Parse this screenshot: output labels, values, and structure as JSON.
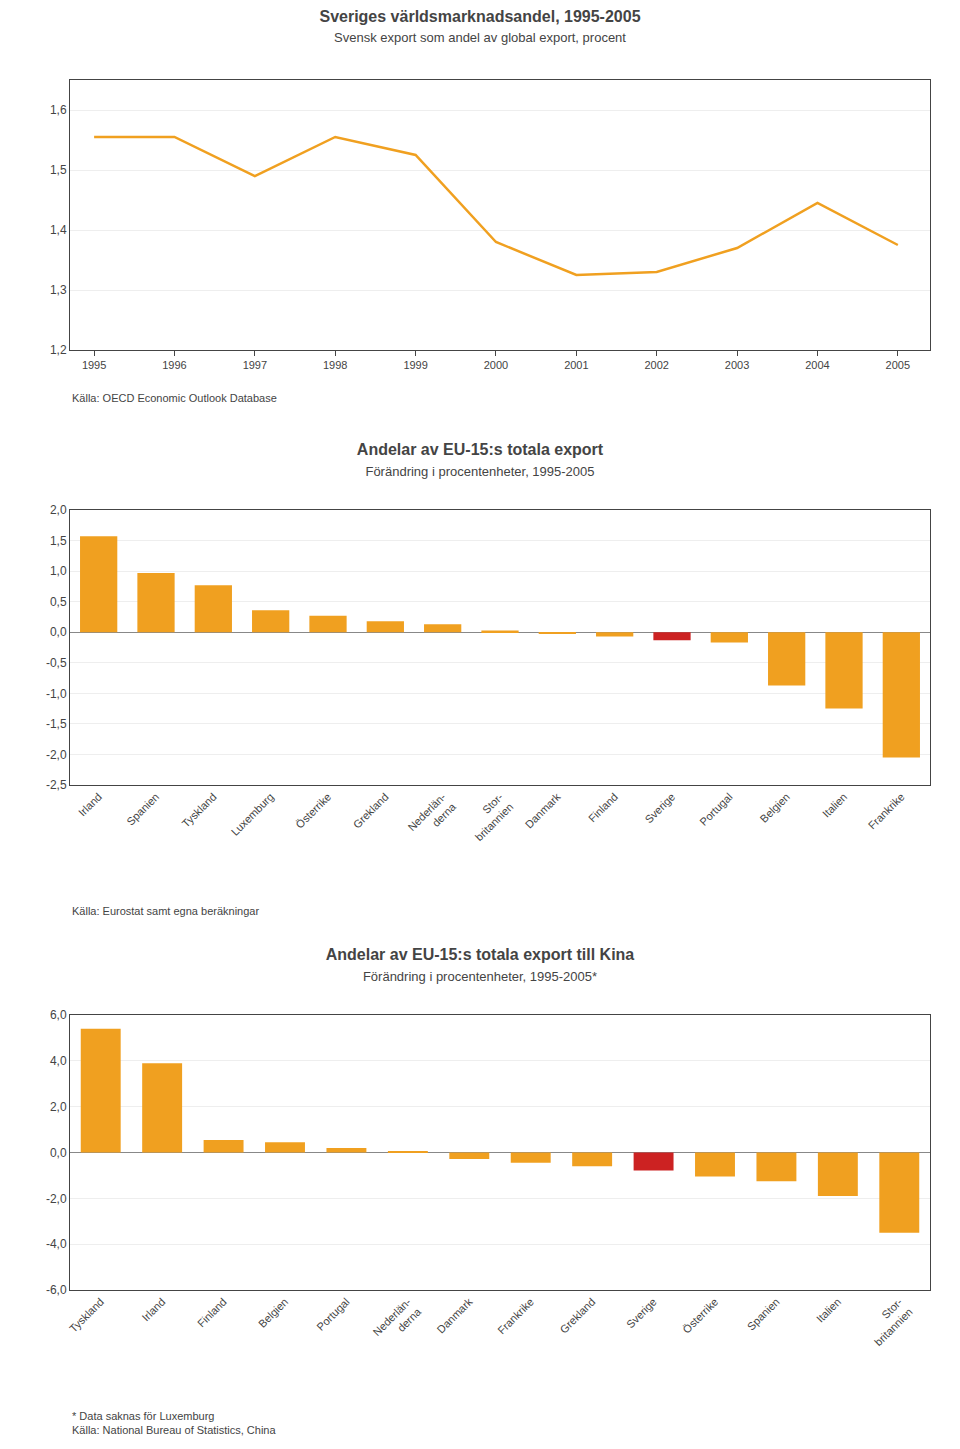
{
  "chart_data": [
    {
      "type": "line",
      "title": "Sveriges världsmarknadsandel, 1995-2005",
      "subtitle": "Svensk export som andel av global export, procent",
      "x": [
        1995,
        1996,
        1997,
        1998,
        1999,
        2000,
        2001,
        2002,
        2003,
        2004,
        2005
      ],
      "values": [
        1.555,
        1.555,
        1.49,
        1.555,
        1.525,
        1.38,
        1.325,
        1.33,
        1.37,
        1.445,
        1.375
      ],
      "color": "#F0A020",
      "xlim": [
        1994.7,
        2005.4
      ],
      "xticks": [
        1995,
        1996,
        1997,
        1998,
        1999,
        2000,
        2001,
        2002,
        2003,
        2004,
        2005
      ],
      "ylim": [
        1.2,
        1.65
      ],
      "yticks": [
        {
          "value": 1.2,
          "label": "1,2"
        },
        {
          "value": 1.3,
          "label": "1,3"
        },
        {
          "value": 1.4,
          "label": "1,4"
        },
        {
          "value": 1.5,
          "label": "1,5"
        },
        {
          "value": 1.6,
          "label": "1,6"
        }
      ],
      "grid": true,
      "annotations": [
        "Källa: OECD Economic Outlook Database"
      ]
    },
    {
      "type": "bar",
      "title": "Andelar av EU-15:s totala export",
      "subtitle": "Förändring i procentenheter, 1995-2005",
      "categories": [
        "Irland",
        "Spanien",
        "Tyskland",
        "Luxemburg",
        "Österrike",
        "Grekland",
        "Nederlän-\nderna",
        "Stor-\nbritannien",
        "Danmark",
        "Finland",
        "Sverige",
        "Portugal",
        "Belgien",
        "Italien",
        "Frankrike"
      ],
      "values": [
        1.57,
        0.97,
        0.77,
        0.36,
        0.27,
        0.18,
        0.13,
        0.03,
        -0.02,
        -0.07,
        -0.13,
        -0.17,
        -0.87,
        -1.25,
        -2.05
      ],
      "colors": [
        "#F0A020",
        "#F0A020",
        "#F0A020",
        "#F0A020",
        "#F0A020",
        "#F0A020",
        "#F0A020",
        "#F0A020",
        "#F0A020",
        "#F0A020",
        "#CC2222",
        "#F0A020",
        "#F0A020",
        "#F0A020",
        "#F0A020"
      ],
      "ylim": [
        -2.5,
        2.0
      ],
      "yticks": [
        {
          "value": -2.5,
          "label": "-2,5"
        },
        {
          "value": -2.0,
          "label": "-2,0"
        },
        {
          "value": -1.5,
          "label": "-1,5"
        },
        {
          "value": -1.0,
          "label": "-1,0"
        },
        {
          "value": -0.5,
          "label": "-0,5"
        },
        {
          "value": 0.0,
          "label": "0,0"
        },
        {
          "value": 0.5,
          "label": "0,5"
        },
        {
          "value": 1.0,
          "label": "1,0"
        },
        {
          "value": 1.5,
          "label": "1,5"
        },
        {
          "value": 2.0,
          "label": "2,0"
        }
      ],
      "grid": true,
      "annotations": [
        "Källa: Eurostat samt egna beräkningar"
      ]
    },
    {
      "type": "bar",
      "title": "Andelar av EU-15:s totala export till Kina",
      "subtitle": "Förändring i procentenheter, 1995-2005*",
      "categories": [
        "Tyskland",
        "Irland",
        "Finland",
        "Belgien",
        "Portugal",
        "Nederlän-\nderna",
        "Danmark",
        "Frankrike",
        "Grekland",
        "Sverige",
        "Österrike",
        "Spanien",
        "Italien",
        "Stor-\nbritannien"
      ],
      "values": [
        5.4,
        3.9,
        0.55,
        0.45,
        0.2,
        0.07,
        -0.28,
        -0.45,
        -0.6,
        -0.78,
        -1.05,
        -1.25,
        -1.9,
        -3.5
      ],
      "colors": [
        "#F0A020",
        "#F0A020",
        "#F0A020",
        "#F0A020",
        "#F0A020",
        "#F0A020",
        "#F0A020",
        "#F0A020",
        "#F0A020",
        "#CC2222",
        "#F0A020",
        "#F0A020",
        "#F0A020",
        "#F0A020"
      ],
      "ylim": [
        -6.0,
        6.0
      ],
      "yticks": [
        {
          "value": -6.0,
          "label": "-6,0"
        },
        {
          "value": -4.0,
          "label": "-4,0"
        },
        {
          "value": -2.0,
          "label": "-2,0"
        },
        {
          "value": 0.0,
          "label": "0,0"
        },
        {
          "value": 2.0,
          "label": "2,0"
        },
        {
          "value": 4.0,
          "label": "4,0"
        },
        {
          "value": 6.0,
          "label": "6,0"
        }
      ],
      "grid": true,
      "annotations": [
        "* Data saknas för Luxemburg\nKälla: National Bureau of Statistics, China"
      ]
    }
  ]
}
